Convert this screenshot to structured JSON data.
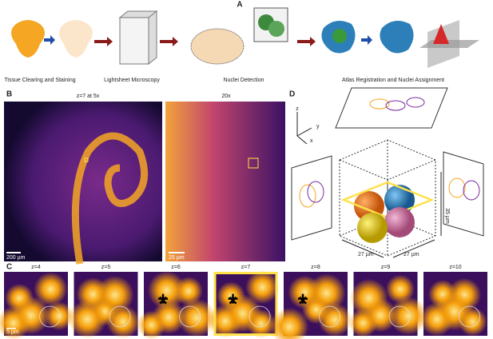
{
  "panel_a": {
    "label": "A",
    "steps": [
      "Tissue Clearing and Staining",
      "Lightsheet Microscopy",
      "Nuclei Detection",
      "Atlas Registration and Nuclei Assignment"
    ]
  },
  "panel_b": {
    "label": "B",
    "left_title": "z=7 at 5x",
    "right_title": "20x",
    "left_scale": "200 µm",
    "right_scale": "25 µm"
  },
  "panel_c": {
    "label": "C",
    "slices": [
      "z=4",
      "z=5",
      "z=6",
      "z=7",
      "z=8",
      "z=9",
      "z=10"
    ],
    "scale": "5 µm"
  },
  "panel_d": {
    "label": "D",
    "axes": [
      "z",
      "y",
      "x"
    ],
    "dims": [
      "27 µm",
      "27 µm",
      "35 µm"
    ]
  }
}
